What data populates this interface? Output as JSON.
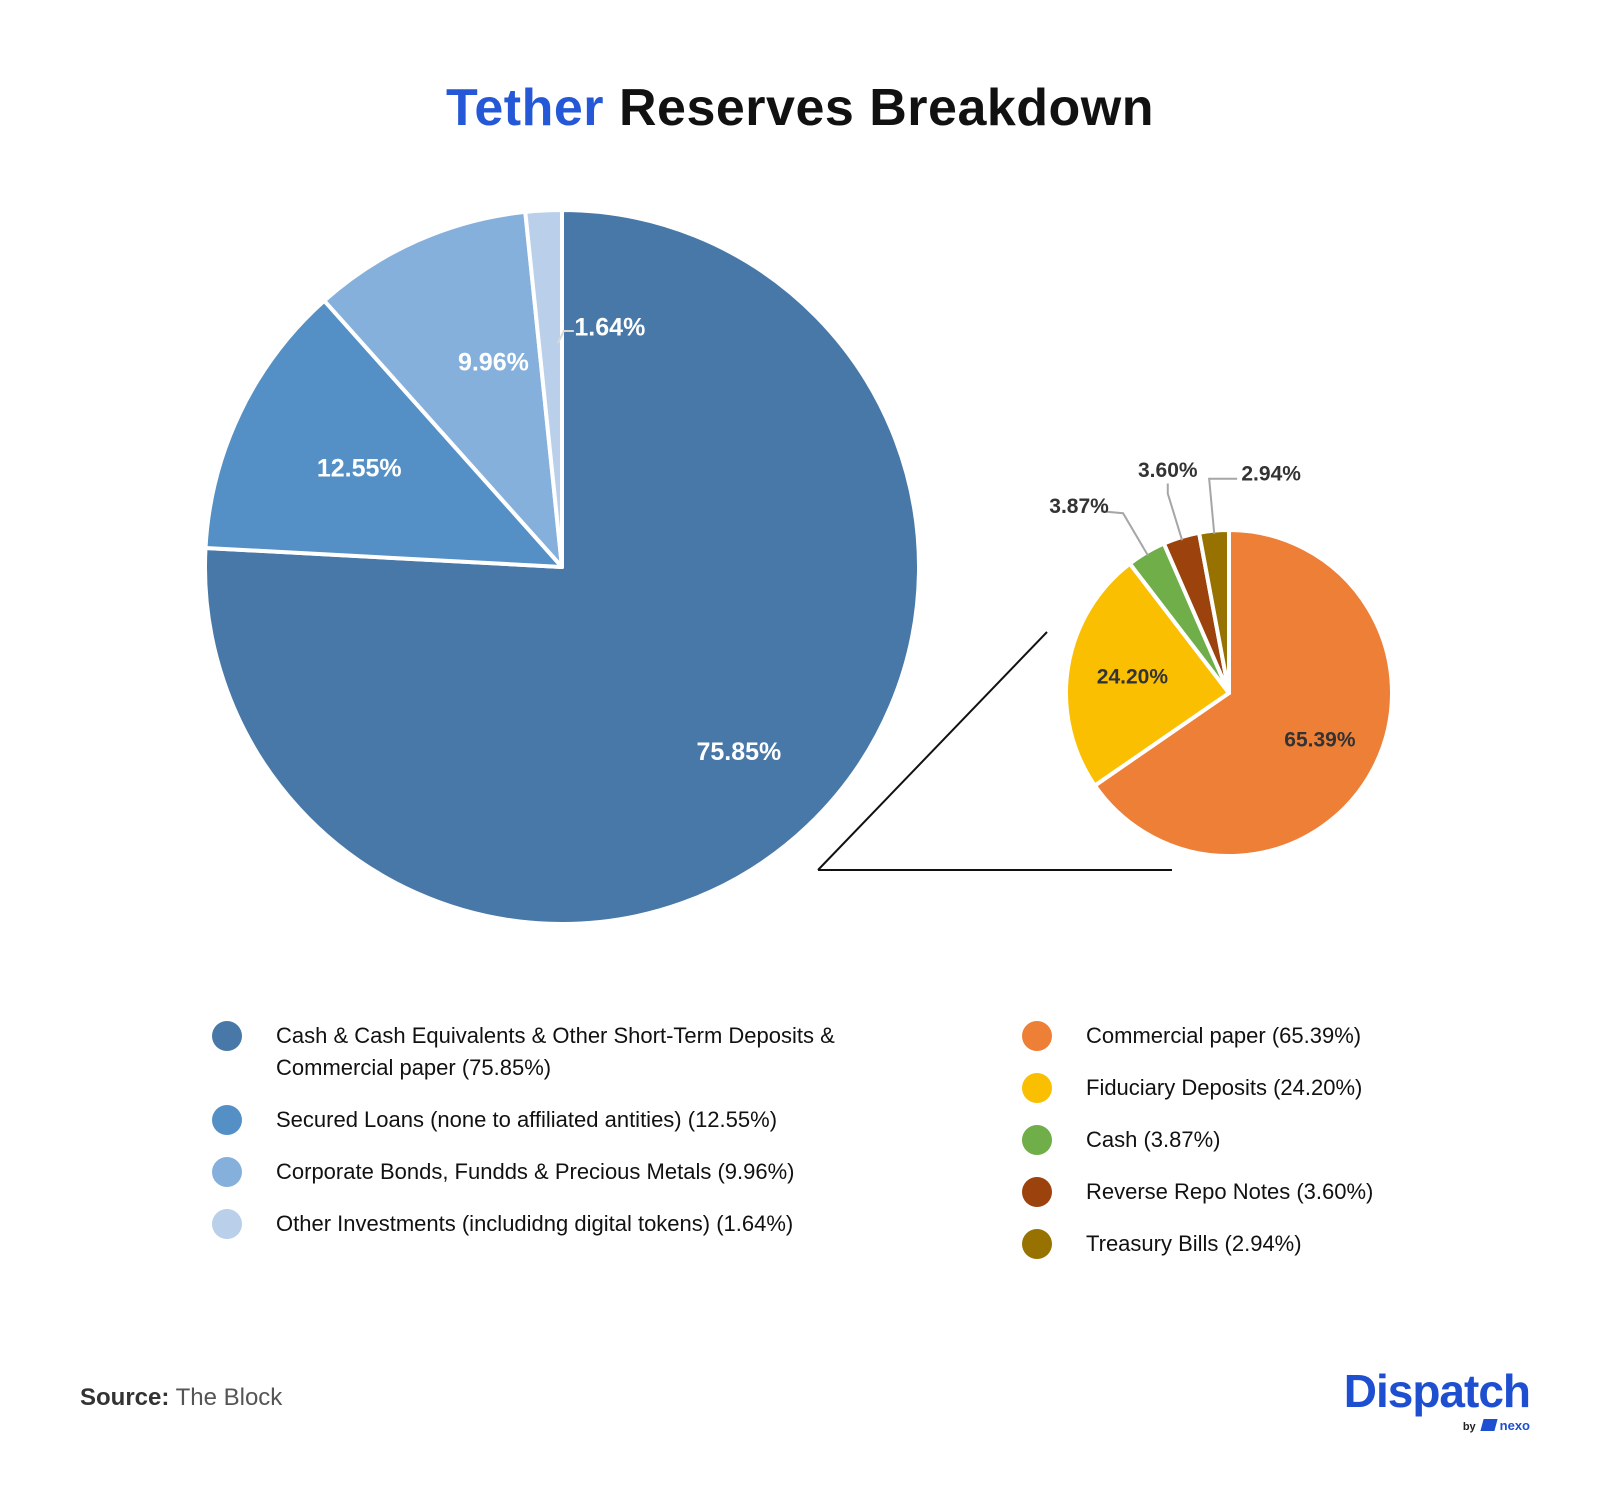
{
  "title": {
    "accent": "Tether",
    "rest": " Reserves Breakdown"
  },
  "chart_data": [
    {
      "type": "pie",
      "slices": [
        {
          "label": "Cash & Cash Equivalents & Other Short-Term Deposits & Commercial paper (75.85%)",
          "value": 75.85,
          "display": "75.85%",
          "color": "#4878a8"
        },
        {
          "label": "Secured Loans (none to affiliated antities) (12.55%)",
          "value": 12.55,
          "display": "12.55%",
          "color": "#5490c6"
        },
        {
          "label": "Corporate Bonds, Fundds & Precious Metals (9.96%)",
          "value": 9.96,
          "display": "9.96%",
          "color": "#86b0dc"
        },
        {
          "label": "Other Investments (includidng digital tokens) (1.64%)",
          "value": 1.64,
          "display": "1.64%",
          "color": "#bacfea"
        }
      ]
    },
    {
      "type": "pie",
      "slices": [
        {
          "label": "Commercial paper (65.39%)",
          "value": 65.39,
          "display": "65.39%",
          "color": "#ee7f37"
        },
        {
          "label": "Fiduciary Deposits (24.20%)",
          "value": 24.2,
          "display": "24.20%",
          "color": "#fbbf02"
        },
        {
          "label": "Cash (3.87%)",
          "value": 3.87,
          "display": "3.87%",
          "color": "#6fae48"
        },
        {
          "label": "Reverse Repo Notes (3.60%)",
          "value": 3.6,
          "display": "3.60%",
          "color": "#9c420d"
        },
        {
          "label": "Treasury Bills (2.94%)",
          "value": 2.94,
          "display": "2.94%",
          "color": "#977200"
        }
      ]
    }
  ],
  "source": {
    "label": "Source:",
    "value": " The Block"
  },
  "logo": {
    "word": "Dispatch",
    "by": "by",
    "brand": "nexo"
  }
}
